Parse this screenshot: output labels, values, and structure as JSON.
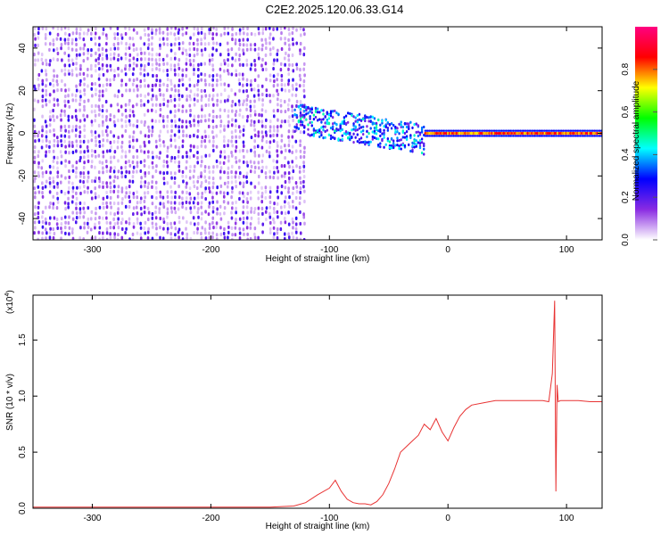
{
  "title": "C2E2.2025.120.06.33.G14",
  "chart_data": [
    {
      "type": "heatmap",
      "xlabel": "Height of straight line (km)",
      "ylabel": "Frequency (Hz)",
      "xlim": [
        -350,
        130
      ],
      "ylim": [
        -50,
        50
      ],
      "x_ticks": [
        -300,
        -200,
        -100,
        0,
        100
      ],
      "x_tick_labels": [
        "-300",
        "-200",
        "-100",
        "0",
        "100"
      ],
      "y_ticks": [
        -40,
        -20,
        0,
        20,
        40
      ],
      "y_tick_labels": [
        "-40",
        "-20",
        "0",
        "20",
        "40"
      ],
      "colorbar": {
        "label": "Normalized spectral amplitude",
        "range": [
          0,
          1
        ],
        "ticks": [
          0.0,
          0.2,
          0.4,
          0.6,
          0.8
        ],
        "tick_labels": [
          "0.0",
          "0.2",
          "0.4",
          "0.6",
          "0.8"
        ],
        "colormap": [
          "#ffffff",
          "#8a2be2",
          "#0000ff",
          "#00ffff",
          "#00ff00",
          "#ffff00",
          "#ff0000",
          "#ff0080"
        ]
      },
      "regions": [
        {
          "x_range": [
            -350,
            -120
          ],
          "freq_range": [
            -50,
            50
          ],
          "amplitude": 0.15,
          "pattern": "broadband noise"
        },
        {
          "x_range": [
            -130,
            -20
          ],
          "freq_range": [
            -10,
            10
          ],
          "amplitude": 0.35,
          "pattern": "scattered drifting signal"
        },
        {
          "x_range": [
            -20,
            130
          ],
          "freq_range": [
            -2,
            2
          ],
          "amplitude": 0.85,
          "pattern": "narrowband carrier"
        }
      ],
      "grid": false
    },
    {
      "type": "line",
      "xlabel": "Height of straight line (km)",
      "ylabel": "SNR (10 * v/v)",
      "y_multiplier": "(x10",
      "y_multiplier_exp": "4",
      "y_multiplier_close": ")",
      "xlim": [
        -350,
        130
      ],
      "ylim": [
        0,
        1.9
      ],
      "x_ticks": [
        -300,
        -200,
        -100,
        0,
        100
      ],
      "x_tick_labels": [
        "-300",
        "-200",
        "-100",
        "0",
        "100"
      ],
      "y_ticks": [
        0.0,
        0.5,
        1.0,
        1.5
      ],
      "y_tick_labels": [
        "0.0",
        "0.5",
        "1.0",
        "1.5"
      ],
      "color": "#e83232",
      "series": [
        {
          "x": [
            -350,
            -300,
            -250,
            -200,
            -150,
            -130,
            -120,
            -110,
            -100,
            -95,
            -90,
            -85,
            -80,
            -75,
            -70,
            -65,
            -60,
            -55,
            -50,
            -45,
            -40,
            -35,
            -30,
            -25,
            -20,
            -15,
            -10,
            -5,
            0,
            5,
            10,
            15,
            20,
            30,
            40,
            50,
            60,
            70,
            80,
            85,
            88,
            90,
            91,
            92,
            93,
            95,
            100,
            110,
            120,
            130
          ],
          "y": [
            0.01,
            0.01,
            0.01,
            0.01,
            0.01,
            0.02,
            0.05,
            0.12,
            0.18,
            0.25,
            0.15,
            0.08,
            0.05,
            0.04,
            0.04,
            0.03,
            0.06,
            0.12,
            0.22,
            0.35,
            0.5,
            0.55,
            0.6,
            0.65,
            0.75,
            0.7,
            0.8,
            0.68,
            0.6,
            0.72,
            0.82,
            0.88,
            0.92,
            0.94,
            0.96,
            0.96,
            0.96,
            0.96,
            0.96,
            0.95,
            1.2,
            1.85,
            0.15,
            1.1,
            0.95,
            0.96,
            0.96,
            0.96,
            0.95,
            0.95
          ]
        }
      ],
      "grid": false
    }
  ]
}
